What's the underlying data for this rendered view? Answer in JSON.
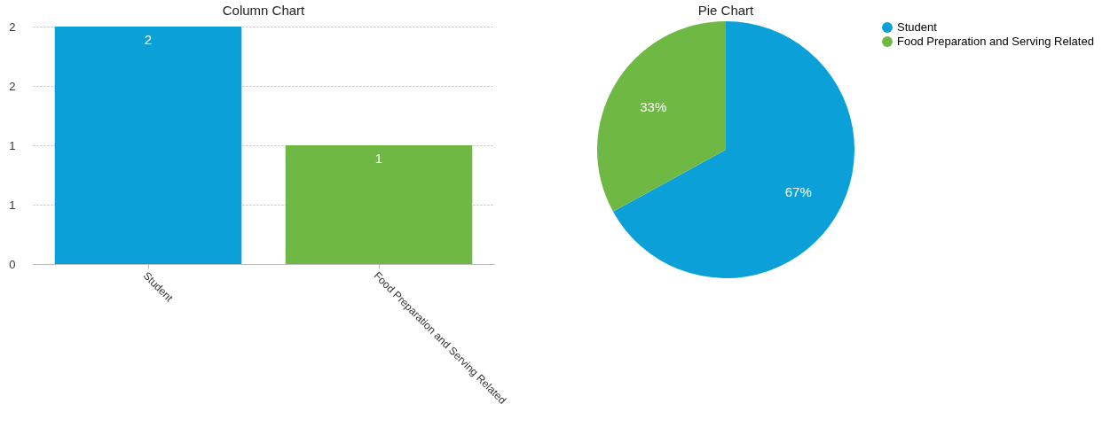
{
  "chart_data": [
    {
      "type": "bar",
      "title": "Column Chart",
      "categories": [
        "Student",
        "Food Preparation and Serving Related"
      ],
      "values": [
        2,
        1
      ],
      "colors": [
        "#0ba0d8",
        "#6fb843"
      ],
      "ylim": [
        0,
        2
      ],
      "yticks": [
        0,
        {
          "value": 0.5,
          "label": "1"
        },
        1,
        {
          "value": 1.5,
          "label": "2"
        },
        2
      ],
      "grid": "y",
      "data_labels": true
    },
    {
      "type": "pie",
      "title": "Pie Chart",
      "categories": [
        "Student",
        "Food Preparation and Serving Related"
      ],
      "values": [
        67,
        33
      ],
      "colors": [
        "#0ba0d8",
        "#6fb843"
      ],
      "value_labels": [
        "67%",
        "33%"
      ],
      "legend": "right"
    }
  ]
}
